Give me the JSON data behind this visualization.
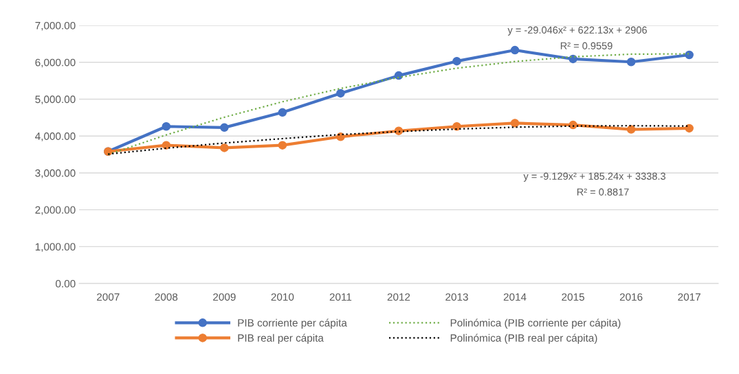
{
  "chart_data": {
    "type": "line",
    "categories": [
      "2007",
      "2008",
      "2009",
      "2010",
      "2011",
      "2012",
      "2013",
      "2014",
      "2015",
      "2016",
      "2017"
    ],
    "series": [
      {
        "name": "PIB corriente per cápita",
        "color": "#4472c4",
        "marker": "circle",
        "line_style": "solid",
        "values": [
          3580,
          4260,
          4230,
          4640,
          5160,
          5640,
          6030,
          6330,
          6090,
          6010,
          6200
        ]
      },
      {
        "name": "PIB real per cápita",
        "color": "#ed7d31",
        "marker": "circle",
        "line_style": "solid",
        "values": [
          3580,
          3750,
          3680,
          3750,
          3980,
          4140,
          4260,
          4350,
          4300,
          4180,
          4210
        ]
      },
      {
        "name": "Polinómica (PIB corriente per cápita)",
        "color": "#70ad47",
        "marker": "none",
        "line_style": "dotted",
        "values": [
          3500,
          4030,
          4510,
          4930,
          5290,
          5590,
          5840,
          6020,
          6150,
          6220,
          6230
        ]
      },
      {
        "name": "Polinómica (PIB real per cápita)",
        "color": "#000000",
        "marker": "none",
        "line_style": "dotted",
        "values": [
          3510,
          3670,
          3810,
          3930,
          4040,
          4120,
          4190,
          4240,
          4270,
          4280,
          4270
        ]
      }
    ],
    "ylim": [
      0,
      7000
    ],
    "yticks": [
      {
        "value": 0,
        "label": "0.00"
      },
      {
        "value": 1000,
        "label": "1,000.00"
      },
      {
        "value": 2000,
        "label": "2,000.00"
      },
      {
        "value": 3000,
        "label": "3,000.00"
      },
      {
        "value": 4000,
        "label": "4,000.00"
      },
      {
        "value": 5000,
        "label": "5,000.00"
      },
      {
        "value": 6000,
        "label": "6,000.00"
      },
      {
        "value": 7000,
        "label": "7,000.00"
      }
    ],
    "grid": "y",
    "legend": "bottom",
    "annotations": [
      "y = -29.046x² + 622.13x + 2906",
      "R² = 0.9559",
      "y = -9.129x² + 185.24x + 3338.3",
      "R² = 0.8817"
    ]
  }
}
